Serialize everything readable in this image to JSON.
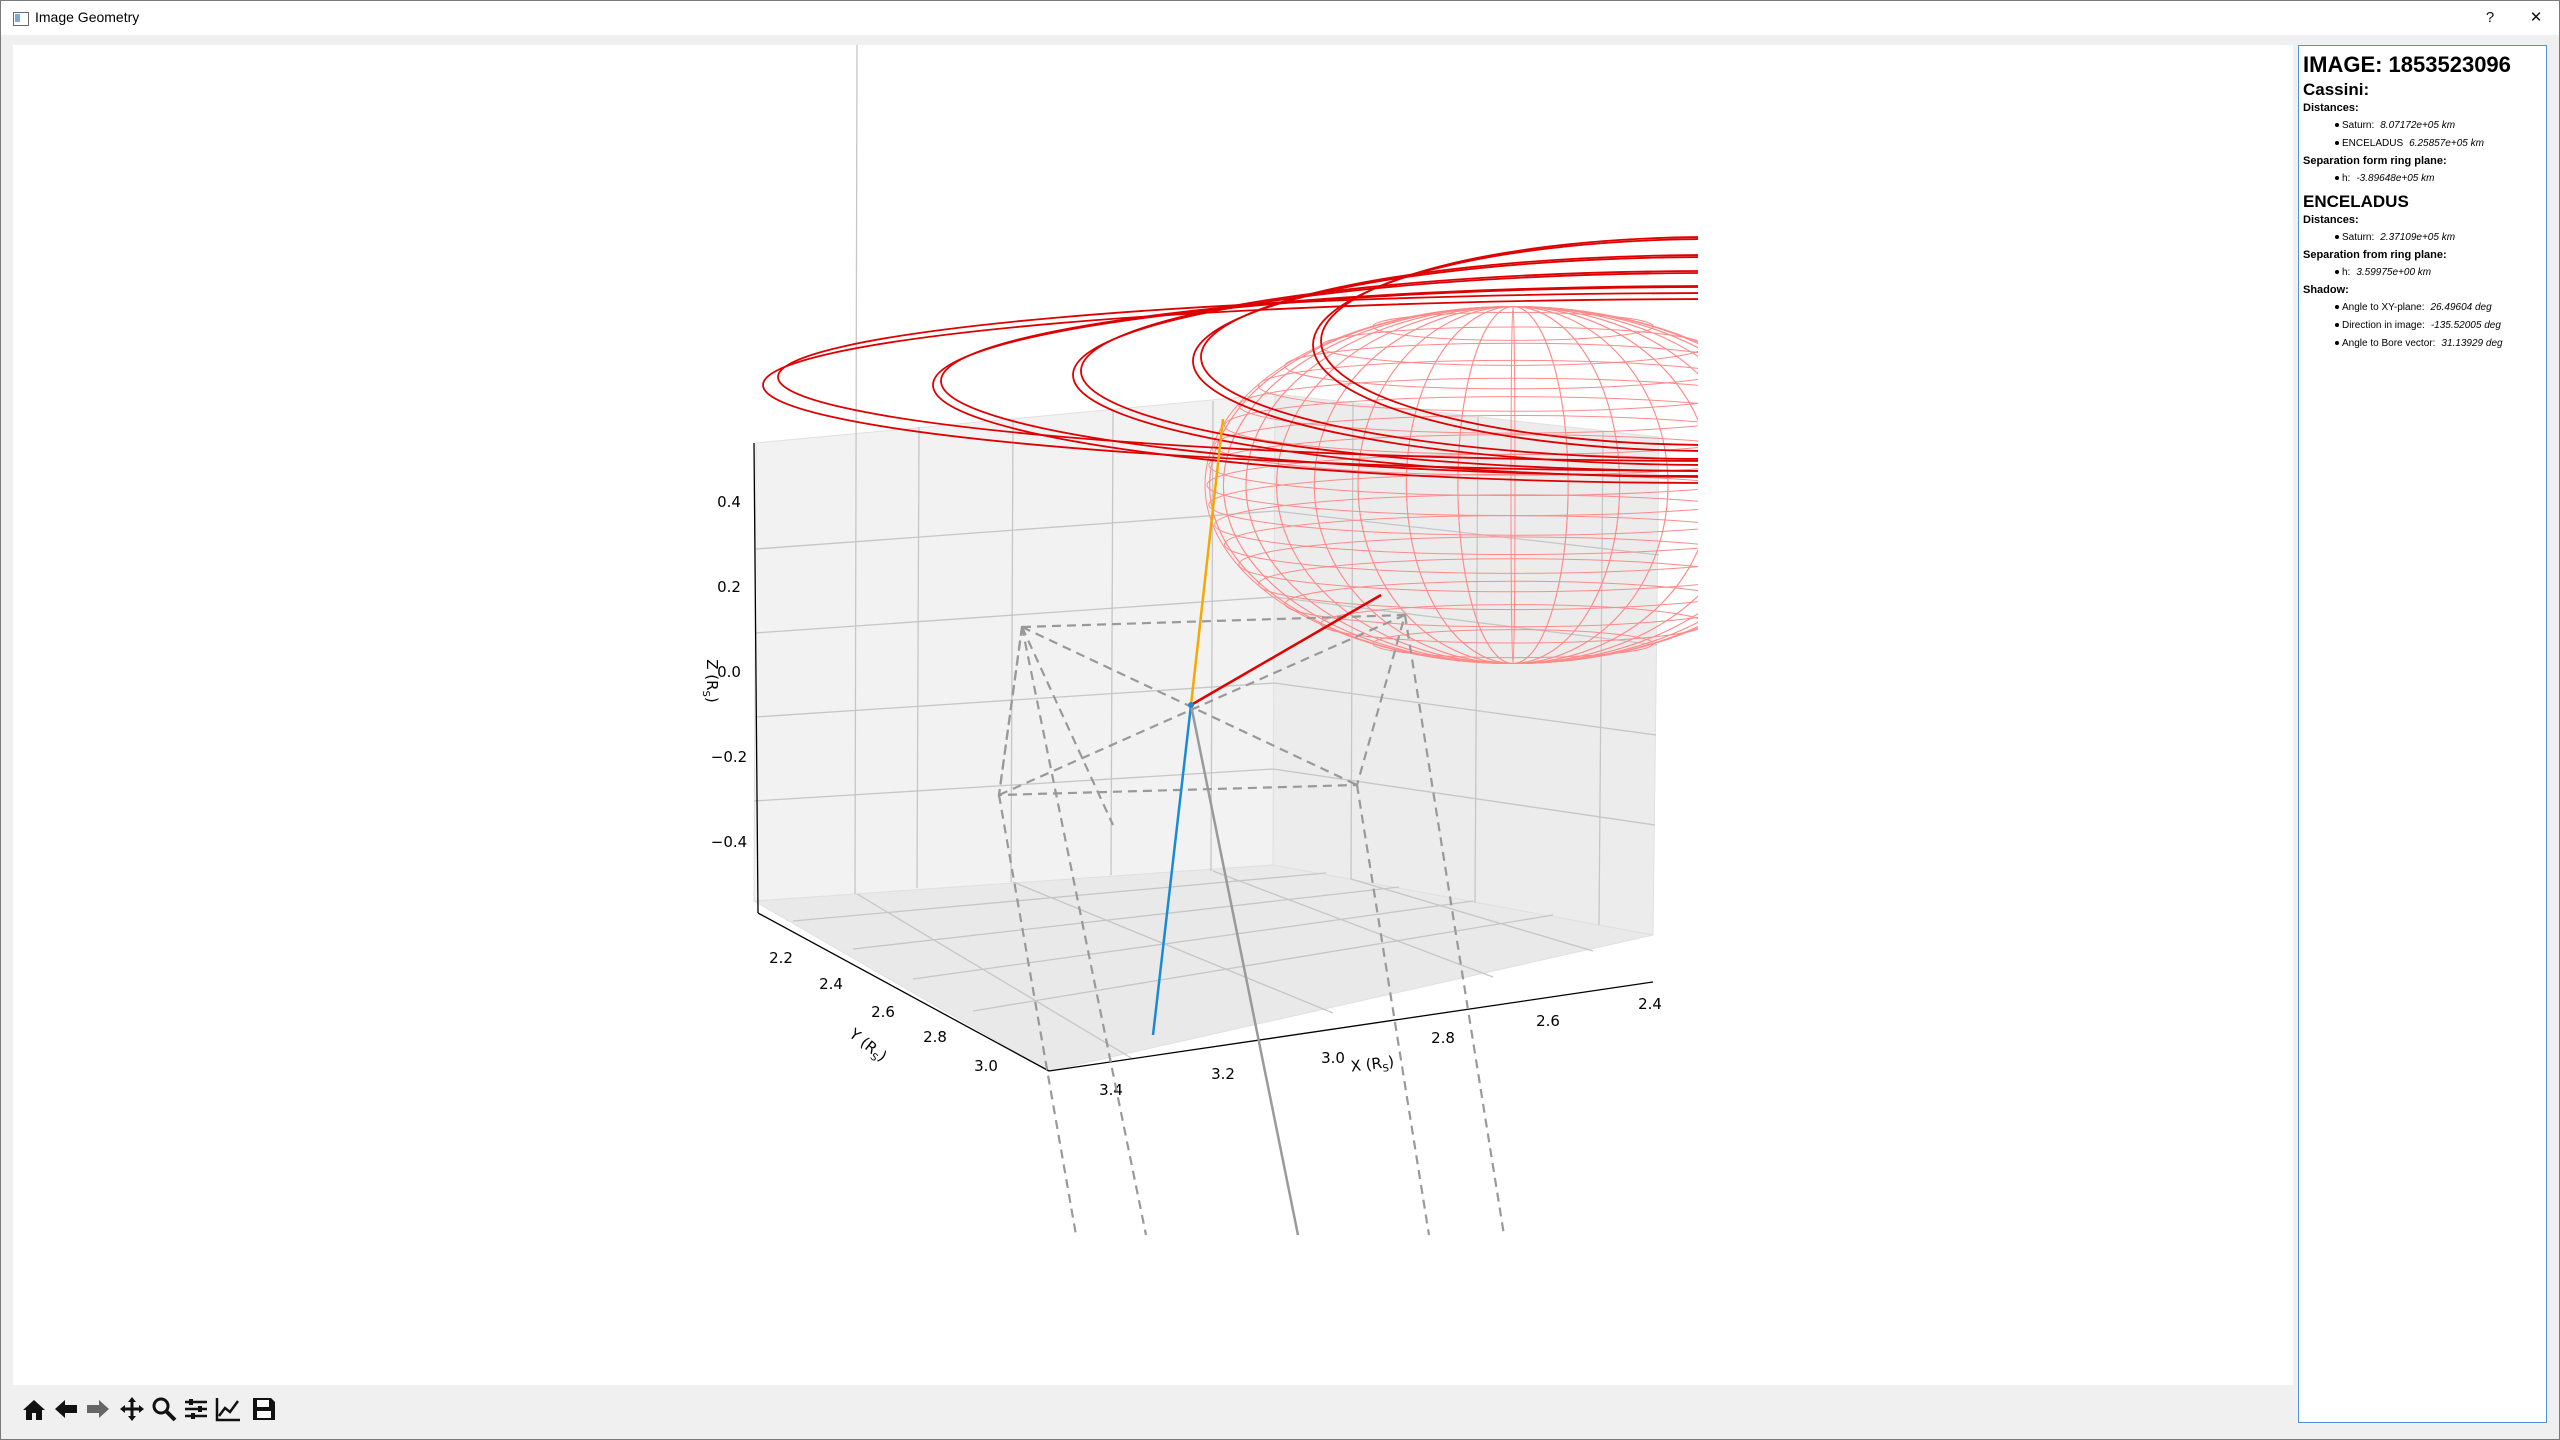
{
  "window": {
    "title": "Image Geometry",
    "help_label": "?",
    "close_label": "✕"
  },
  "plot": {
    "axes": {
      "z_label": "Z (R",
      "z_sub": "S",
      "y_label": "Y (R",
      "y_sub": "S",
      "x_label": "X (R",
      "x_sub": "S",
      "z_ticks": [
        "0.4",
        "0.2",
        "0.0",
        "−0.2",
        "−0.4"
      ],
      "y_ticks": [
        "2.2",
        "2.4",
        "2.6",
        "2.8",
        "3.0"
      ],
      "x_ticks": [
        "3.4",
        "3.2",
        "3.0",
        "2.8",
        "2.6",
        "2.4"
      ]
    },
    "colors": {
      "rings": "#dd0000",
      "sphere": "#ff8a8a",
      "yellow": "#f5a800",
      "blue": "#1a8ad4",
      "red": "#e00000",
      "frame": "#999999",
      "bore": "#9a9a9a"
    }
  },
  "toolbar": {
    "tools": [
      {
        "name": "home-icon",
        "tooltip": "Home"
      },
      {
        "name": "back-icon",
        "tooltip": "Back"
      },
      {
        "name": "forward-icon",
        "tooltip": "Forward"
      },
      {
        "name": "pan-icon",
        "tooltip": "Pan"
      },
      {
        "name": "zoom-icon",
        "tooltip": "Zoom"
      },
      {
        "name": "subplots-icon",
        "tooltip": "Configure subplots"
      },
      {
        "name": "axes-icon",
        "tooltip": "Edit axis"
      },
      {
        "name": "save-icon",
        "tooltip": "Save"
      }
    ]
  },
  "info": {
    "image_title": "IMAGE: 1853523096",
    "cassini": {
      "heading": "Cassini:",
      "distances_label": "Distances:",
      "distances": [
        {
          "label": "Saturn:",
          "value": "8.07172e+05 km"
        },
        {
          "label": "ENCELADUS",
          "value": "6.25857e+05 km"
        }
      ],
      "separation_label": "Separation form ring plane:",
      "separation": [
        {
          "label": "h:",
          "value": "-3.89648e+05 km"
        }
      ]
    },
    "enceladus": {
      "heading": "ENCELADUS",
      "distances_label": "Distances:",
      "distances": [
        {
          "label": "Saturn:",
          "value": "2.37109e+05 km"
        }
      ],
      "separation_label": "Separation from ring plane:",
      "separation": [
        {
          "label": "h:",
          "value": "3.59975e+00 km"
        }
      ],
      "shadow_label": "Shadow:",
      "shadow": [
        {
          "label": "Angle to XY-plane:",
          "value": "26.49604 deg"
        },
        {
          "label": "Direction in image:",
          "value": "-135.52005 deg"
        },
        {
          "label": "Angle to Bore vector:",
          "value": "31.13929 deg"
        }
      ]
    }
  }
}
